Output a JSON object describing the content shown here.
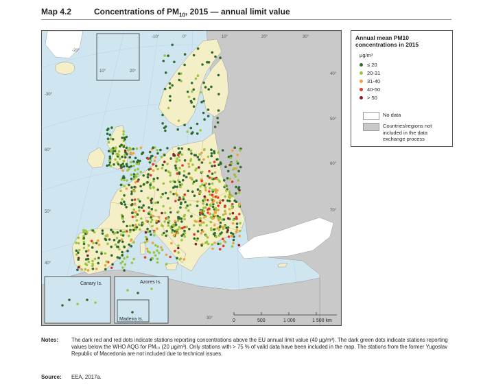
{
  "header": {
    "map_number": "Map 4.2",
    "title_prefix": "Concentrations of PM",
    "title_subscript": "10",
    "title_suffix": ", 2015 — annual limit value"
  },
  "map": {
    "insets": {
      "canary": "Canary Is.",
      "azores": "Azores Is.",
      "madeira": "Madeira Is."
    },
    "scale_labels": [
      "0",
      "500",
      "1 000",
      "1 500 km"
    ],
    "graticule_labels": [
      "-30°",
      "-20°",
      "-10°",
      "0°",
      "10°",
      "20°",
      "30°",
      "40°",
      "50°",
      "60°",
      "70°",
      "60°",
      "50°",
      "40°",
      "30°",
      "10°",
      "20°"
    ]
  },
  "legend": {
    "title": "Annual mean PM10 concentrations in 2015",
    "unit": "µg/m³",
    "classes": [
      {
        "label": "≤ 20",
        "color": "#2e6b2e"
      },
      {
        "label": "20-31",
        "color": "#9bc53d"
      },
      {
        "label": "31-40",
        "color": "#f2a03d"
      },
      {
        "label": "40-50",
        "color": "#e8352a"
      },
      {
        "label": "> 50",
        "color": "#8b1a2b"
      }
    ],
    "no_data": "No data",
    "excluded": "Countries/regions not included in the data exchange process"
  },
  "colors": {
    "sea": "#cfe6f1",
    "land_included": "#f5efc8",
    "land_excluded": "#c9c9c9",
    "no_data": "#ffffff"
  },
  "notes": {
    "label": "Notes:",
    "text": "The dark red and red dots indicate stations reporting concentrations above the EU annual limit value (40 µg/m³). The dark green dots indicate stations reporting values below the WHO AQG for PM₁₀ (20 µg/m³). Only stations with > 75 % of valid data have been included in the map. The stations from the former Yugoslav Republic of Macedonia are not included due to technical issues."
  },
  "source": {
    "label": "Source:",
    "text": "EEA, 2017a."
  }
}
